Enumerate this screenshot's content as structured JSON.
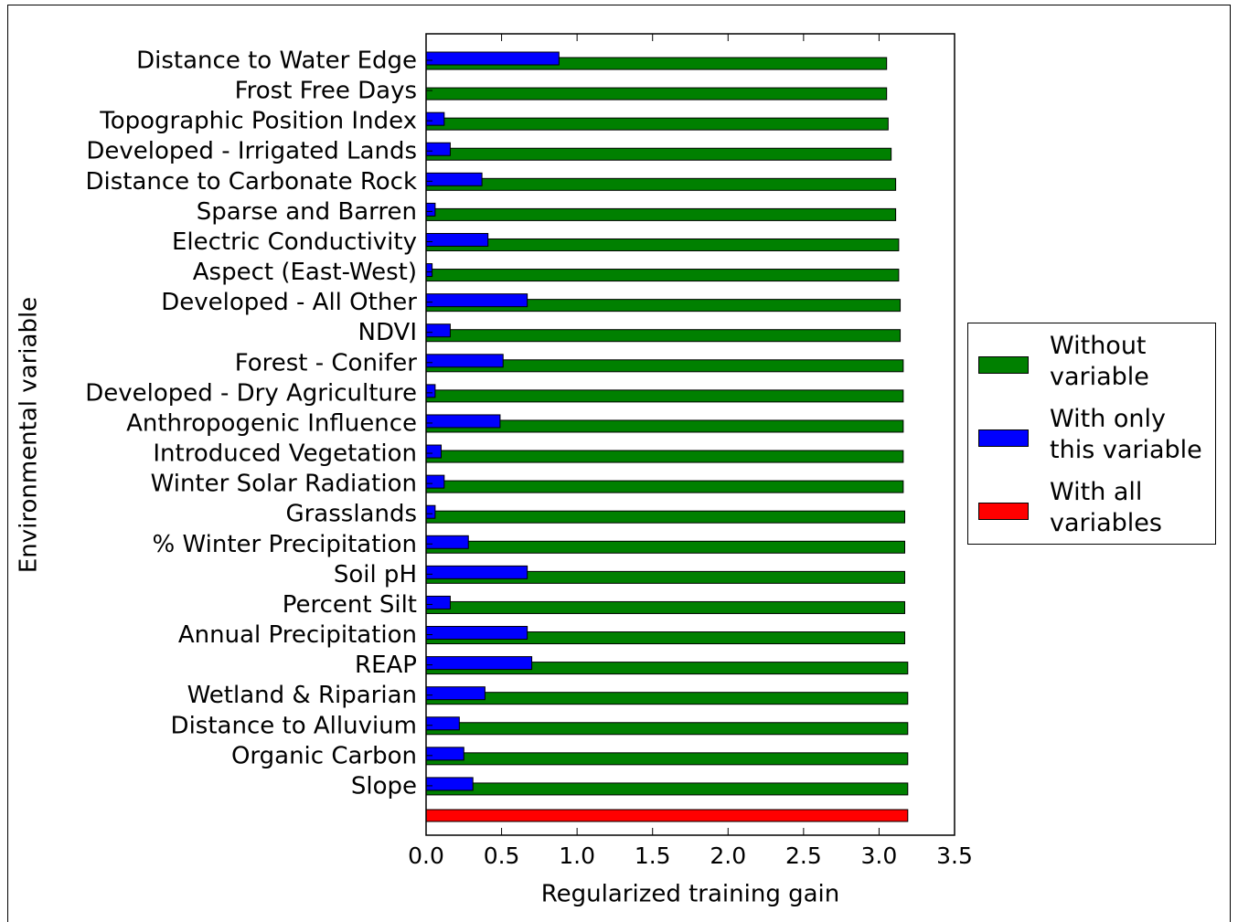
{
  "chart_data": {
    "type": "hbar",
    "categories": [
      "Distance to Water Edge",
      "Frost Free Days",
      "Topographic Position Index",
      "Developed - Irrigated Lands",
      "Distance to Carbonate Rock",
      "Sparse and Barren",
      "Electric Conductivity",
      "Aspect (East-West)",
      "Developed - All Other",
      "NDVI",
      "Forest - Conifer",
      "Developed - Dry Agriculture",
      "Anthropogenic Influence",
      "Introduced Vegetation",
      "Winter Solar Radiation",
      "Grasslands",
      "% Winter Precipitation",
      "Soil pH",
      "Percent Silt",
      "Annual Precipitation",
      "REAP",
      "Wetland & Riparian",
      "Distance to Alluvium",
      "Organic Carbon",
      "Slope",
      null
    ],
    "series": [
      {
        "name": "Without variable",
        "color": "#008000",
        "values": [
          3.05,
          3.05,
          3.06,
          3.08,
          3.11,
          3.11,
          3.13,
          3.13,
          3.14,
          3.14,
          3.16,
          3.16,
          3.16,
          3.16,
          3.16,
          3.17,
          3.17,
          3.17,
          3.17,
          3.17,
          3.19,
          3.19,
          3.19,
          3.19,
          3.19,
          null
        ]
      },
      {
        "name": "With only this variable",
        "color": "#0000ff",
        "values": [
          0.88,
          0,
          0.12,
          0.16,
          0.37,
          0.06,
          0.41,
          0.04,
          0.67,
          0.16,
          0.51,
          0.06,
          0.49,
          0.1,
          0.12,
          0.06,
          0.28,
          0.67,
          0.16,
          0.67,
          0.7,
          0.39,
          0.22,
          0.25,
          0.31,
          null
        ]
      },
      {
        "name": "With all variables",
        "color": "#ff0000",
        "values": [
          null,
          null,
          null,
          null,
          null,
          null,
          null,
          null,
          null,
          null,
          null,
          null,
          null,
          null,
          null,
          null,
          null,
          null,
          null,
          null,
          null,
          null,
          null,
          null,
          null,
          3.19
        ]
      }
    ],
    "x_label": "Regularized training gain",
    "y_label": "Environmental variable",
    "xlim": [
      0,
      3.5
    ],
    "xticks": [
      {
        "value": 0,
        "label": "0.0"
      },
      0.5,
      {
        "value": 1,
        "label": "1.0"
      },
      1.5,
      {
        "value": 2,
        "label": "2.0"
      },
      2.5,
      {
        "value": 3,
        "label": "3.0"
      },
      3.5
    ],
    "legend": "right"
  }
}
